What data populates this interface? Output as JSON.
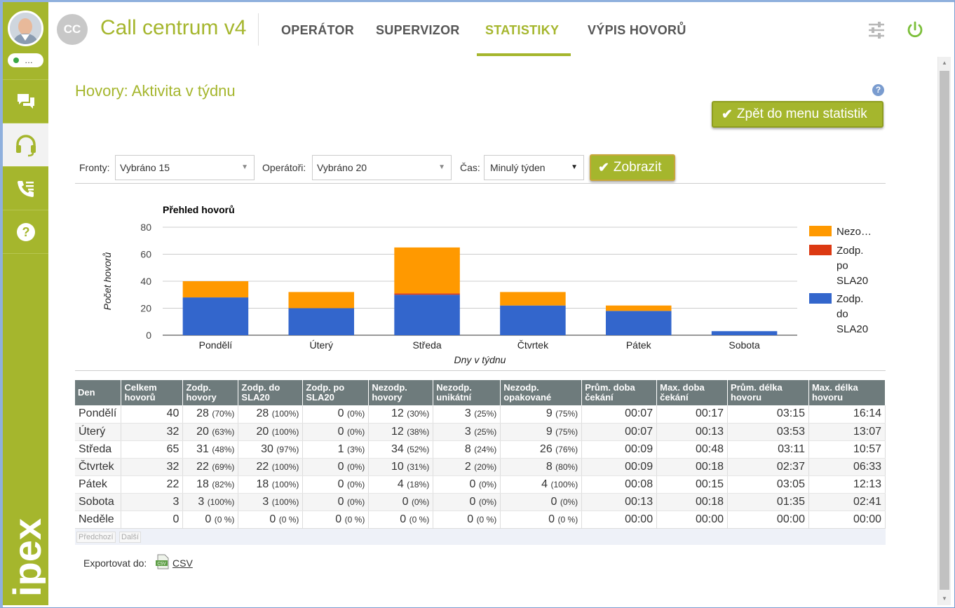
{
  "sidebar": {
    "status_text": "…",
    "items": [
      {
        "icon": "chat-icon"
      },
      {
        "icon": "headset-icon",
        "active": true
      },
      {
        "icon": "phone-list-icon"
      },
      {
        "icon": "question-icon"
      }
    ],
    "brand": "ipex"
  },
  "header": {
    "initials": "CC",
    "app_title": "Call centrum v4",
    "nav": [
      "OPERÁTOR",
      "SUPERVIZOR",
      "STATISTIKY",
      "VÝPIS HOVORŮ"
    ],
    "active_nav": "STATISTIKY",
    "accent_color": "#a5b62d"
  },
  "page": {
    "title": "Hovory: Aktivita v týdnu",
    "help": "?",
    "back_button": "Zpět do menu statistik"
  },
  "filters": {
    "queues_label": "Fronty:",
    "queues_value": "Vybráno 15",
    "operators_label": "Operátoři:",
    "operators_value": "Vybráno 20",
    "time_label": "Čas:",
    "time_value": "Minulý týden",
    "show_button": "Zobrazit"
  },
  "chart_data": {
    "type": "bar",
    "stacked": true,
    "title": "Přehled hovorů",
    "xlabel": "Dny v týdnu",
    "ylabel": "Počet hovorů",
    "ylim": [
      0,
      80
    ],
    "yticks": [
      0,
      20,
      40,
      60,
      80
    ],
    "grid": true,
    "legend_position": "right",
    "categories": [
      "Pondělí",
      "Úterý",
      "Středa",
      "Čtvrtek",
      "Pátek",
      "Sobota"
    ],
    "series": [
      {
        "name": "Zodp. do SLA20",
        "color": "#3366cc",
        "values": [
          28,
          20,
          30,
          22,
          18,
          3
        ]
      },
      {
        "name": "Zodp. po SLA20",
        "color": "#dc3912",
        "values": [
          0,
          0,
          1,
          0,
          0,
          0
        ]
      },
      {
        "name": "Nezo…",
        "color": "#ff9900",
        "values": [
          12,
          12,
          34,
          10,
          4,
          0
        ]
      }
    ],
    "legend_display": [
      {
        "color": "#ff9900",
        "lines": [
          "Nezo…"
        ]
      },
      {
        "color": "#dc3912",
        "lines": [
          "Zodp.",
          "po",
          "SLA20"
        ]
      },
      {
        "color": "#3366cc",
        "lines": [
          "Zodp.",
          "do",
          "SLA20"
        ]
      }
    ]
  },
  "table": {
    "headers": [
      [
        "Den"
      ],
      [
        "Celkem",
        "hovorů"
      ],
      [
        "Zodp.",
        "hovory"
      ],
      [
        "Zodp. do",
        "SLA20"
      ],
      [
        "Zodp. po",
        "SLA20"
      ],
      [
        "Nezodp.",
        "hovory"
      ],
      [
        "Nezodp.",
        "unikátní"
      ],
      [
        "Nezodp.",
        "opakované"
      ],
      [
        "Prům. doba",
        "čekání"
      ],
      [
        "Max. doba",
        "čekání"
      ],
      [
        "Prům. délka",
        "hovoru"
      ],
      [
        "Max. délka",
        "hovoru"
      ]
    ],
    "rows": [
      [
        "Pondělí",
        "40",
        [
          "28",
          "(70%)"
        ],
        [
          "28",
          "(100%)"
        ],
        [
          "0",
          "(0%)"
        ],
        [
          "12",
          "(30%)"
        ],
        [
          "3",
          "(25%)"
        ],
        [
          "9",
          "(75%)"
        ],
        "00:07",
        "00:17",
        "03:15",
        "16:14"
      ],
      [
        "Úterý",
        "32",
        [
          "20",
          "(63%)"
        ],
        [
          "20",
          "(100%)"
        ],
        [
          "0",
          "(0%)"
        ],
        [
          "12",
          "(38%)"
        ],
        [
          "3",
          "(25%)"
        ],
        [
          "9",
          "(75%)"
        ],
        "00:07",
        "00:13",
        "03:53",
        "13:07"
      ],
      [
        "Středa",
        "65",
        [
          "31",
          "(48%)"
        ],
        [
          "30",
          "(97%)"
        ],
        [
          "1",
          "(3%)"
        ],
        [
          "34",
          "(52%)"
        ],
        [
          "8",
          "(24%)"
        ],
        [
          "26",
          "(76%)"
        ],
        "00:09",
        "00:48",
        "03:11",
        "10:57"
      ],
      [
        "Čtvrtek",
        "32",
        [
          "22",
          "(69%)"
        ],
        [
          "22",
          "(100%)"
        ],
        [
          "0",
          "(0%)"
        ],
        [
          "10",
          "(31%)"
        ],
        [
          "2",
          "(20%)"
        ],
        [
          "8",
          "(80%)"
        ],
        "00:09",
        "00:18",
        "02:37",
        "06:33"
      ],
      [
        "Pátek",
        "22",
        [
          "18",
          "(82%)"
        ],
        [
          "18",
          "(100%)"
        ],
        [
          "0",
          "(0%)"
        ],
        [
          "4",
          "(18%)"
        ],
        [
          "0",
          "(0%)"
        ],
        [
          "4",
          "(100%)"
        ],
        "00:08",
        "00:15",
        "03:05",
        "12:13"
      ],
      [
        "Sobota",
        "3",
        [
          "3",
          "(100%)"
        ],
        [
          "3",
          "(100%)"
        ],
        [
          "0",
          "(0%)"
        ],
        [
          "0",
          "(0%)"
        ],
        [
          "0",
          "(0%)"
        ],
        [
          "0",
          "(0%)"
        ],
        "00:13",
        "00:18",
        "01:35",
        "02:41"
      ],
      [
        "Neděle",
        "0",
        [
          "0",
          "(0 %)"
        ],
        [
          "0",
          "(0 %)"
        ],
        [
          "0",
          "(0 %)"
        ],
        [
          "0",
          "(0 %)"
        ],
        [
          "0",
          "(0 %)"
        ],
        [
          "0",
          "(0 %)"
        ],
        "00:00",
        "00:00",
        "00:00",
        "00:00"
      ]
    ],
    "pager_prev": "Předchozí",
    "pager_next": "Další"
  },
  "export": {
    "label": "Exportovat do:",
    "csv_label": "CSV",
    "icon": "csv-file-icon"
  }
}
